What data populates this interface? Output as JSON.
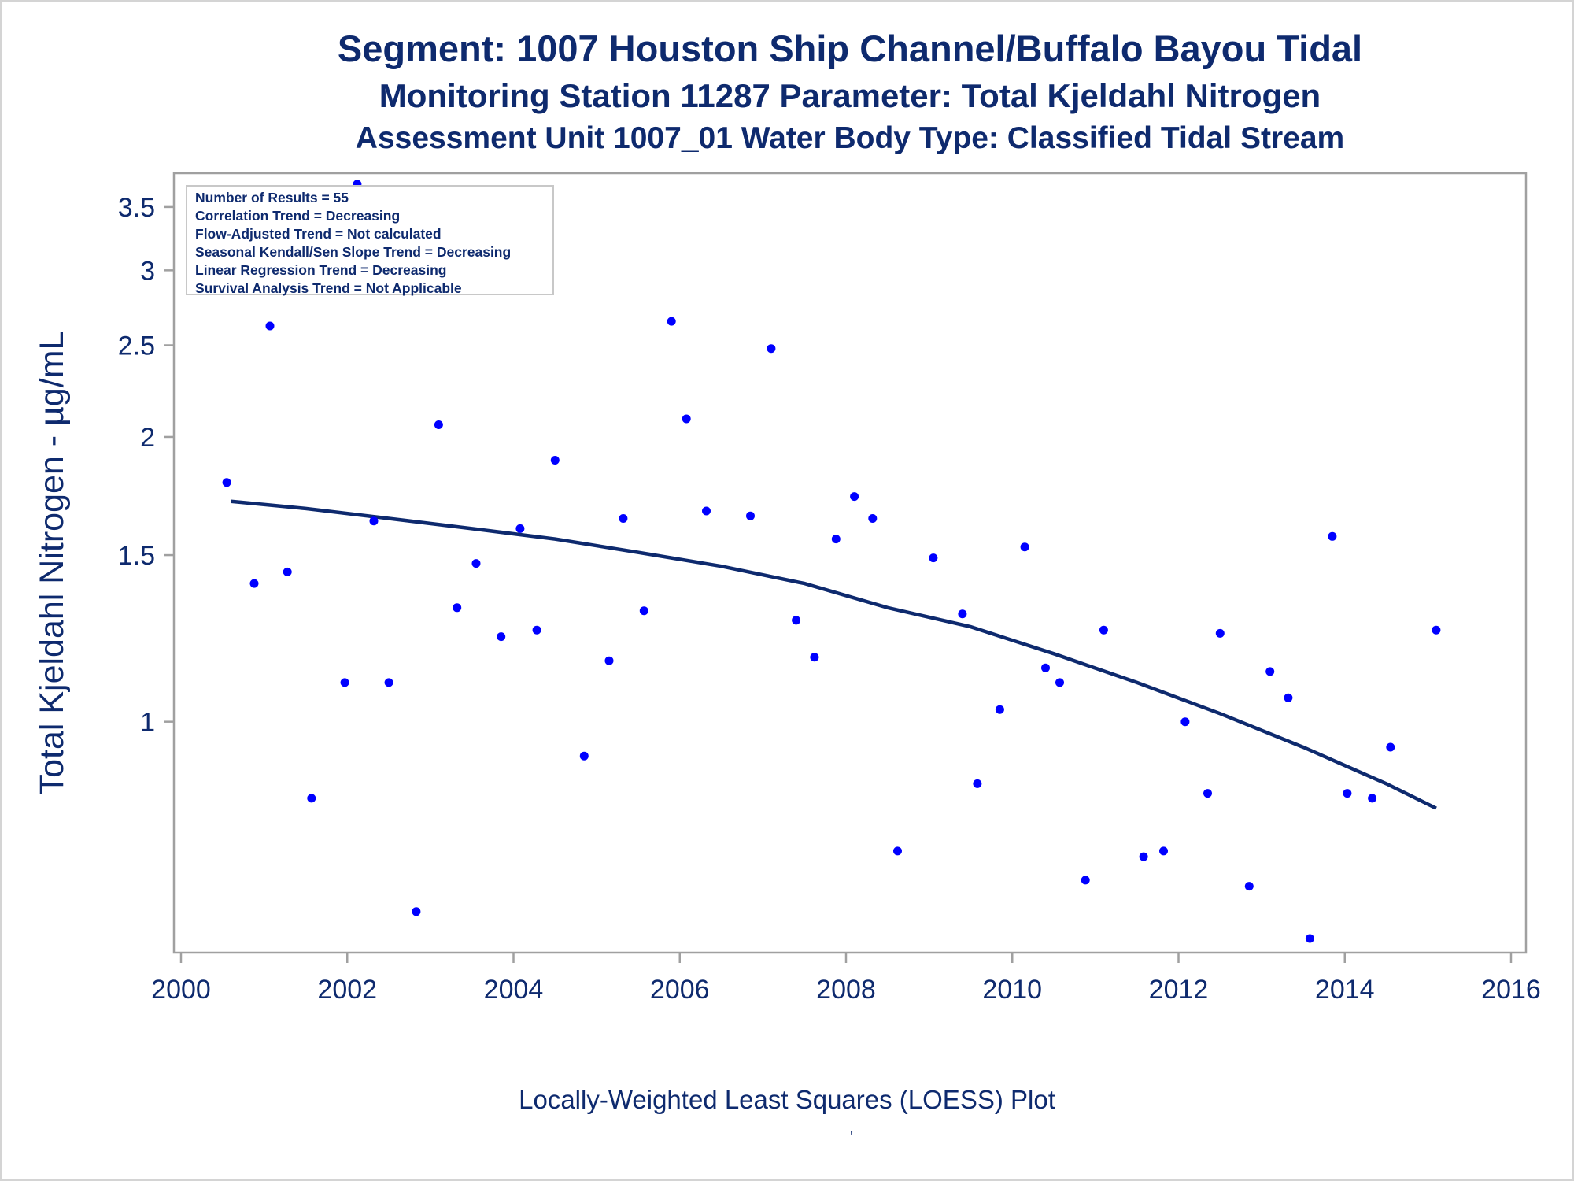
{
  "titles": {
    "line1": "Segment: 1007  Houston Ship Channel/Buffalo Bayou Tidal",
    "line2": "Monitoring Station 11287 Parameter: Total Kjeldahl Nitrogen",
    "line3": "Assessment Unit 1007_01   Water Body Type: Classified Tidal Stream"
  },
  "stats": [
    "Number of Results = 55",
    "Correlation Trend = Decreasing",
    "Flow-Adjusted Trend = Not calculated",
    "Seasonal Kendall/Sen Slope Trend = Decreasing",
    "Linear Regression Trend = Decreasing",
    "Survival Analysis Trend = Not Applicable"
  ],
  "footnote": "Locally-Weighted Least Squares (LOESS) Plot",
  "footnote_mark": "'",
  "colors": {
    "text": "#0e2a6e",
    "points": "#0000ff",
    "loess": "#0e2a6e",
    "frame": "#a0a0a0"
  },
  "chart_data": {
    "type": "scatter",
    "ylabel": "Total Kjeldahl Nitrogen -  µg/mL",
    "xlabel": "",
    "y_scale": "log",
    "xlim": [
      2000,
      2016
    ],
    "ylim": [
      0.57,
      3.8
    ],
    "x_ticks": [
      2000,
      2002,
      2004,
      2006,
      2008,
      2010,
      2012,
      2014,
      2016
    ],
    "y_ticks": [
      1,
      1.5,
      2,
      2.5,
      3,
      3.5
    ],
    "grid": false,
    "legend": "top-left",
    "points": [
      {
        "x": 2000.55,
        "y": 1.79
      },
      {
        "x": 2000.88,
        "y": 1.4
      },
      {
        "x": 2001.07,
        "y": 2.62
      },
      {
        "x": 2001.28,
        "y": 1.44
      },
      {
        "x": 2001.57,
        "y": 0.83
      },
      {
        "x": 2001.97,
        "y": 1.1
      },
      {
        "x": 2002.12,
        "y": 3.7
      },
      {
        "x": 2002.32,
        "y": 1.63
      },
      {
        "x": 2002.5,
        "y": 1.1
      },
      {
        "x": 2002.83,
        "y": 0.63
      },
      {
        "x": 2003.1,
        "y": 2.06
      },
      {
        "x": 2003.32,
        "y": 1.32
      },
      {
        "x": 2003.55,
        "y": 1.47
      },
      {
        "x": 2003.85,
        "y": 1.23
      },
      {
        "x": 2004.08,
        "y": 1.6
      },
      {
        "x": 2004.28,
        "y": 1.25
      },
      {
        "x": 2004.5,
        "y": 1.89
      },
      {
        "x": 2004.85,
        "y": 0.92
      },
      {
        "x": 2005.15,
        "y": 1.16
      },
      {
        "x": 2005.32,
        "y": 1.64
      },
      {
        "x": 2005.57,
        "y": 1.31
      },
      {
        "x": 2005.9,
        "y": 2.65
      },
      {
        "x": 2006.08,
        "y": 2.09
      },
      {
        "x": 2006.32,
        "y": 1.67
      },
      {
        "x": 2006.85,
        "y": 1.65
      },
      {
        "x": 2007.1,
        "y": 2.48
      },
      {
        "x": 2007.4,
        "y": 1.28
      },
      {
        "x": 2007.62,
        "y": 1.17
      },
      {
        "x": 2007.88,
        "y": 1.56
      },
      {
        "x": 2008.1,
        "y": 1.73
      },
      {
        "x": 2008.32,
        "y": 1.64
      },
      {
        "x": 2008.62,
        "y": 0.73
      },
      {
        "x": 2009.05,
        "y": 1.49
      },
      {
        "x": 2009.4,
        "y": 1.3
      },
      {
        "x": 2009.58,
        "y": 0.86
      },
      {
        "x": 2009.85,
        "y": 1.03
      },
      {
        "x": 2010.15,
        "y": 1.53
      },
      {
        "x": 2010.4,
        "y": 1.14
      },
      {
        "x": 2010.57,
        "y": 1.1
      },
      {
        "x": 2010.88,
        "y": 0.68
      },
      {
        "x": 2011.1,
        "y": 1.25
      },
      {
        "x": 2011.58,
        "y": 0.72
      },
      {
        "x": 2011.82,
        "y": 0.73
      },
      {
        "x": 2012.08,
        "y": 1.0
      },
      {
        "x": 2012.35,
        "y": 0.84
      },
      {
        "x": 2012.5,
        "y": 1.24
      },
      {
        "x": 2012.85,
        "y": 0.67
      },
      {
        "x": 2013.1,
        "y": 1.13
      },
      {
        "x": 2013.32,
        "y": 1.06
      },
      {
        "x": 2013.58,
        "y": 0.59
      },
      {
        "x": 2013.85,
        "y": 1.57
      },
      {
        "x": 2014.03,
        "y": 0.84
      },
      {
        "x": 2014.33,
        "y": 0.83
      },
      {
        "x": 2014.55,
        "y": 0.94
      },
      {
        "x": 2015.1,
        "y": 1.25
      }
    ],
    "loess": {
      "x": [
        2000.6,
        2001.5,
        2002.5,
        2003.5,
        2004.5,
        2005.5,
        2006.5,
        2007.5,
        2008.5,
        2009.5,
        2010.5,
        2011.5,
        2012.5,
        2013.5,
        2014.5,
        2015.1
      ],
      "y": [
        1.71,
        1.68,
        1.64,
        1.6,
        1.56,
        1.51,
        1.46,
        1.4,
        1.32,
        1.26,
        1.18,
        1.1,
        1.02,
        0.94,
        0.86,
        0.81
      ]
    }
  }
}
